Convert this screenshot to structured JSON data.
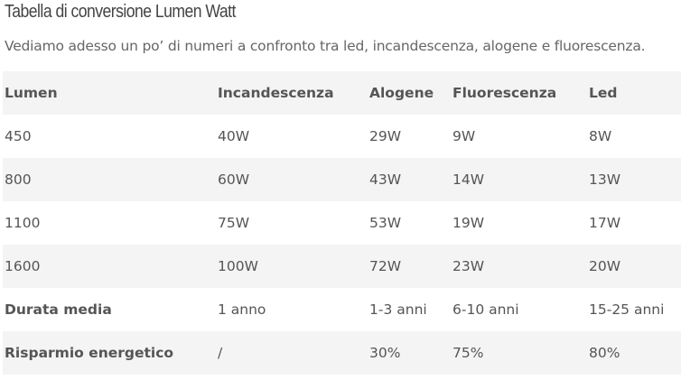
{
  "header": {
    "title": "Tabella di conversione Lumen Watt",
    "subtitle": "Vediamo adesso un po’ di numeri a confronto tra led, incandescenza, alogene e fluorescenza."
  },
  "table": {
    "columns": [
      "Lumen",
      "Incandescenza",
      "Alogene",
      "Fluorescenza",
      "Led"
    ],
    "rows": [
      [
        "450",
        "40W",
        "29W",
        "9W",
        "8W"
      ],
      [
        "800",
        "60W",
        "43W",
        "14W",
        "13W"
      ],
      [
        "1100",
        "75W",
        "53W",
        "19W",
        "17W"
      ],
      [
        "1600",
        "100W",
        "72W",
        "23W",
        "20W"
      ],
      [
        "Durata media",
        "1 anno",
        "1-3 anni",
        "6-10 anni",
        "15-25 anni"
      ],
      [
        "Risparmio energetico",
        "/",
        "30%",
        "75%",
        "80%"
      ]
    ]
  }
}
